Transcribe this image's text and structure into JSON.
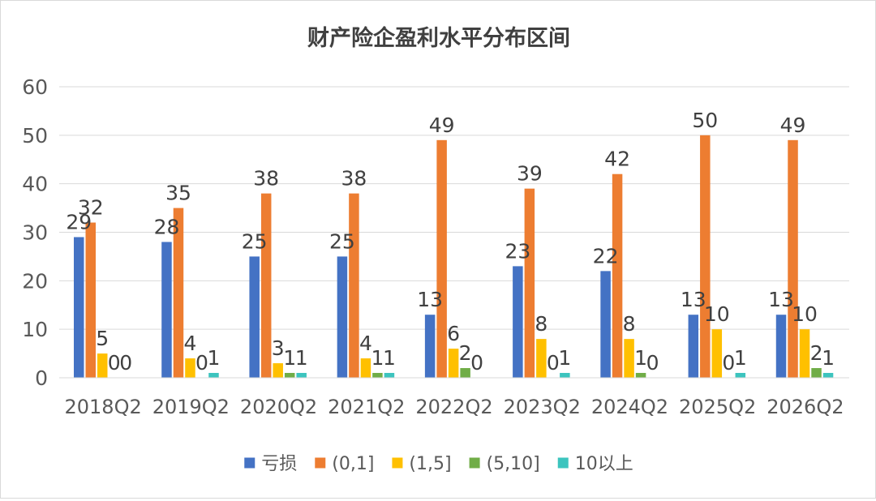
{
  "chart_data": {
    "type": "bar",
    "title": "财产险企盈利水平分布区间",
    "xlabel": "",
    "ylabel": "",
    "ylim": [
      0,
      60
    ],
    "yticks": [
      0,
      10,
      20,
      30,
      40,
      50,
      60
    ],
    "grid": true,
    "legend_position": "bottom",
    "categories": [
      "2018Q2",
      "2019Q2",
      "2020Q2",
      "2021Q2",
      "2022Q2",
      "2023Q2",
      "2024Q2",
      "2025Q2",
      "2026Q2"
    ],
    "series": [
      {
        "name": "亏损",
        "color": "#4472C4",
        "values": [
          29,
          28,
          25,
          25,
          13,
          23,
          22,
          13,
          13
        ]
      },
      {
        "name": "(0,1]",
        "color": "#ED7D31",
        "values": [
          32,
          35,
          38,
          38,
          49,
          39,
          42,
          50,
          49
        ]
      },
      {
        "name": "(1,5]",
        "color": "#FFC000",
        "values": [
          5,
          4,
          3,
          4,
          6,
          8,
          8,
          10,
          10
        ]
      },
      {
        "name": "(5,10]",
        "color": "#70AD47",
        "values": [
          0,
          0,
          1,
          1,
          2,
          0,
          1,
          0,
          2
        ]
      },
      {
        "name": "10以上",
        "color": "#3CC4BE",
        "values": [
          0,
          1,
          1,
          1,
          0,
          1,
          0,
          1,
          1
        ]
      }
    ]
  }
}
